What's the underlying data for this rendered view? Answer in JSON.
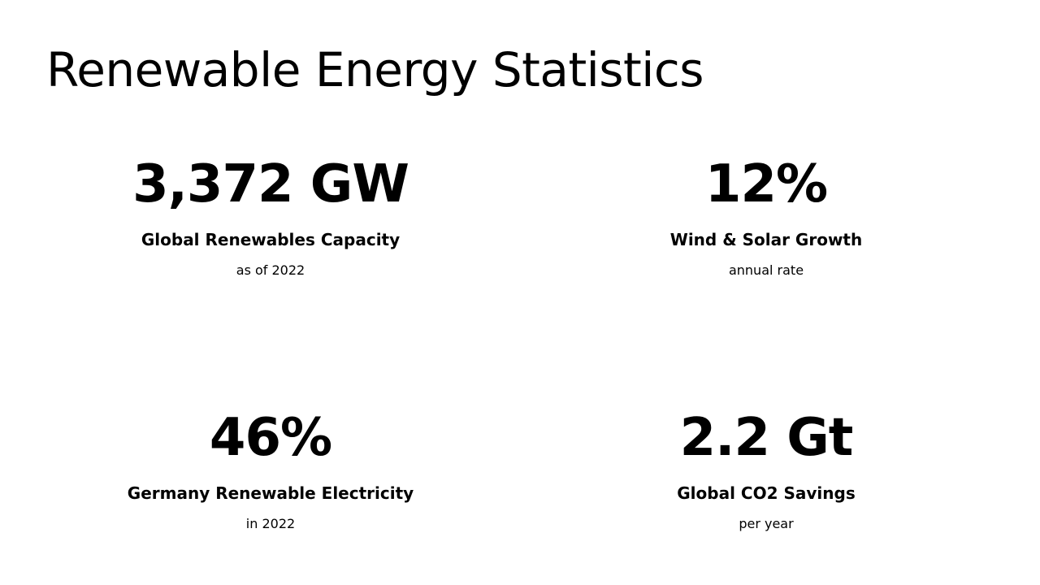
{
  "title": "Renewable Energy Statistics",
  "stats": [
    {
      "value": "3,372 GW",
      "label": "Global Renewables Capacity",
      "sub": "as of 2022"
    },
    {
      "value": "12%",
      "label": "Wind & Solar Growth",
      "sub": "annual rate"
    },
    {
      "value": "46%",
      "label": "Germany Renewable Electricity",
      "sub": "in 2022"
    },
    {
      "value": "2.2 Gt",
      "label": "Global CO2 Savings",
      "sub": "per year"
    }
  ]
}
